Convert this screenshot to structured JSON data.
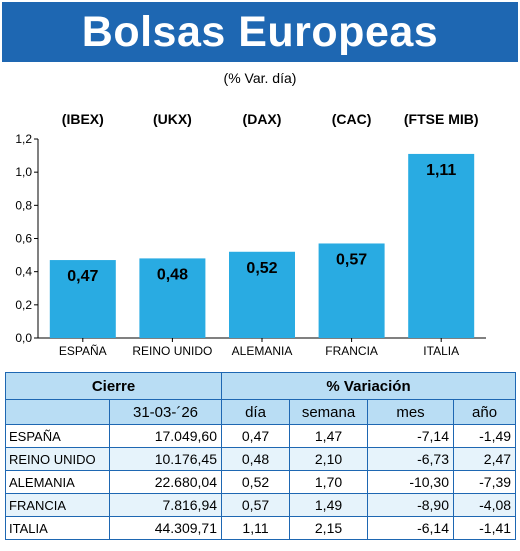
{
  "header": {
    "title": "Bolsas Europeas",
    "subtitle": "(% Var. día)"
  },
  "colors": {
    "banner": "#1e67b2",
    "bar": "#29abe2",
    "table_header": "#b9ddf4",
    "table_border": "#1e67b2"
  },
  "chart_data": {
    "type": "bar",
    "categories": [
      "ESPAÑA",
      "REINO UNIDO",
      "ALEMANIA",
      "FRANCIA",
      "ITALIA"
    ],
    "index_labels": [
      "(IBEX)",
      "(UKX)",
      "(DAX)",
      "(CAC)",
      "(FTSE MIB)"
    ],
    "values": [
      0.47,
      0.48,
      0.52,
      0.57,
      1.11
    ],
    "value_labels": [
      "0,47",
      "0,48",
      "0,52",
      "0,57",
      "1,11"
    ],
    "ylim": [
      0,
      1.2
    ],
    "yticks": [
      0,
      0.2,
      0.4,
      0.6,
      0.8,
      1.0,
      1.2
    ],
    "ytick_labels": [
      "0,0",
      "0,2",
      "0,4",
      "0,6",
      "0,8",
      "1,0",
      "1,2"
    ],
    "grid": false,
    "legend": "none"
  },
  "table": {
    "header_cierre": "Cierre",
    "header_variacion": "% Variación",
    "date": "31-03-´26",
    "cols": [
      "día",
      "semana",
      "mes",
      "año"
    ],
    "rows": [
      {
        "country": "ESPAÑA",
        "cierre": "17.049,60",
        "dia": "0,47",
        "semana": "1,47",
        "mes": "-7,14",
        "ano": "-1,49"
      },
      {
        "country": "REINO UNIDO",
        "cierre": "10.176,45",
        "dia": "0,48",
        "semana": "2,10",
        "mes": "-6,73",
        "ano": "2,47"
      },
      {
        "country": "ALEMANIA",
        "cierre": "22.680,04",
        "dia": "0,52",
        "semana": "1,70",
        "mes": "-10,30",
        "ano": "-7,39"
      },
      {
        "country": "FRANCIA",
        "cierre": "7.816,94",
        "dia": "0,57",
        "semana": "1,49",
        "mes": "-8,90",
        "ano": "-4,08"
      },
      {
        "country": "ITALIA",
        "cierre": "44.309,71",
        "dia": "1,11",
        "semana": "2,15",
        "mes": "-6,14",
        "ano": "-1,41"
      }
    ]
  }
}
